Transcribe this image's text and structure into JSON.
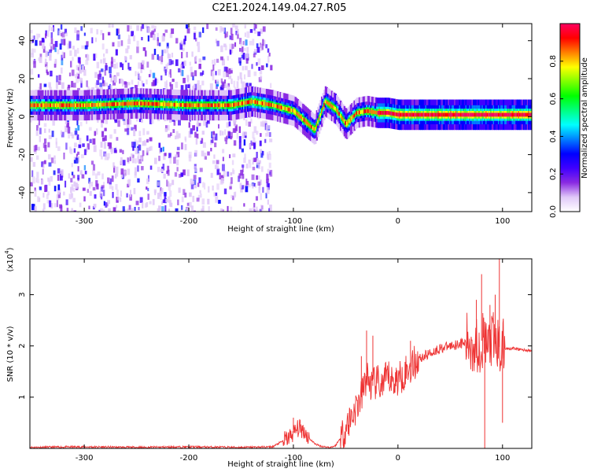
{
  "title": "C2E1.2024.149.04.27.R05",
  "chart_data": [
    {
      "type": "heatmap",
      "xlabel": "Height of straight line (km)",
      "ylabel": "Frequency (Hz)",
      "xlim": [
        -352,
        128
      ],
      "ylim": [
        -50,
        49
      ],
      "x_ticks": [
        -300,
        -200,
        -100,
        0,
        100
      ],
      "y_ticks": [
        -40,
        -20,
        0,
        20,
        40
      ],
      "colorbar": {
        "label": "Normalized spectral amplitude",
        "range": [
          0,
          1
        ],
        "ticks": [
          0.0,
          0.2,
          0.4,
          0.6,
          0.8
        ],
        "colors": [
          "#ffffff",
          "#e0c8f8",
          "#8a2be2",
          "#4000ff",
          "#0000ff",
          "#0080ff",
          "#00ffff",
          "#00ff80",
          "#00ff00",
          "#80ff00",
          "#ffff00",
          "#ff8000",
          "#ff0000",
          "#ff0060"
        ]
      },
      "ridge": {
        "x": [
          -350,
          -300,
          -250,
          -200,
          -160,
          -140,
          -120,
          -100,
          -90,
          -80,
          -70,
          -60,
          -50,
          -40,
          -30,
          -20,
          -10,
          0,
          20,
          50,
          80,
          100,
          128
        ],
        "y": [
          6,
          6,
          7,
          6,
          6,
          8,
          6,
          3,
          -2,
          -7,
          8,
          4,
          -4,
          2,
          3,
          2,
          2,
          1,
          1,
          1,
          1,
          1,
          1
        ]
      },
      "grid": false
    },
    {
      "type": "line",
      "xlabel": "Height of straight line (km)",
      "ylabel": "SNR (10 * v/v)",
      "yscale_label": "(x10",
      "yscale_exp": "4",
      "xlim": [
        -352,
        128
      ],
      "ylim": [
        0,
        3.7
      ],
      "x_ticks": [
        -300,
        -200,
        -100,
        0,
        100
      ],
      "y_ticks": [
        1,
        2,
        3
      ],
      "color": "#ee3333",
      "series": [
        {
          "x": [
            -352,
            -300,
            -250,
            -200,
            -150,
            -120,
            -105,
            -100,
            -95,
            -90,
            -85,
            -80,
            -75,
            -70,
            -65,
            -60,
            -55,
            -50,
            -45,
            -40,
            -35,
            -30,
            -25,
            -20,
            -15,
            -10,
            -5,
            0,
            10,
            20,
            30,
            40,
            50,
            60,
            70,
            75,
            80,
            85,
            90,
            95,
            100,
            110,
            128
          ],
          "y": [
            0.02,
            0.03,
            0.02,
            0.03,
            0.02,
            0.03,
            0.2,
            0.3,
            0.4,
            0.35,
            0.2,
            0.1,
            0.05,
            0.03,
            0.02,
            0.05,
            0.2,
            0.4,
            0.6,
            0.8,
            1.0,
            1.4,
            1.2,
            1.3,
            1.2,
            1.4,
            1.3,
            1.35,
            1.55,
            1.75,
            1.85,
            1.95,
            2.0,
            2.05,
            2.05,
            2.0,
            2.1,
            2.0,
            2.1,
            2.0,
            1.95,
            1.95,
            1.9
          ],
          "spikes": [
            {
              "x": -100,
              "y": 0.6
            },
            {
              "x": -35,
              "y": 1.8
            },
            {
              "x": -30,
              "y": 2.3
            },
            {
              "x": -24,
              "y": 2.2
            },
            {
              "x": 12,
              "y": 2.1
            },
            {
              "x": 75,
              "y": 2.9
            },
            {
              "x": 80,
              "y": 3.4
            },
            {
              "x": 83,
              "y": 0.0
            },
            {
              "x": 88,
              "y": 2.8
            },
            {
              "x": 93,
              "y": 3.0
            },
            {
              "x": 97,
              "y": 3.7
            },
            {
              "x": 100,
              "y": 0.5
            }
          ]
        }
      ],
      "grid": false
    }
  ]
}
